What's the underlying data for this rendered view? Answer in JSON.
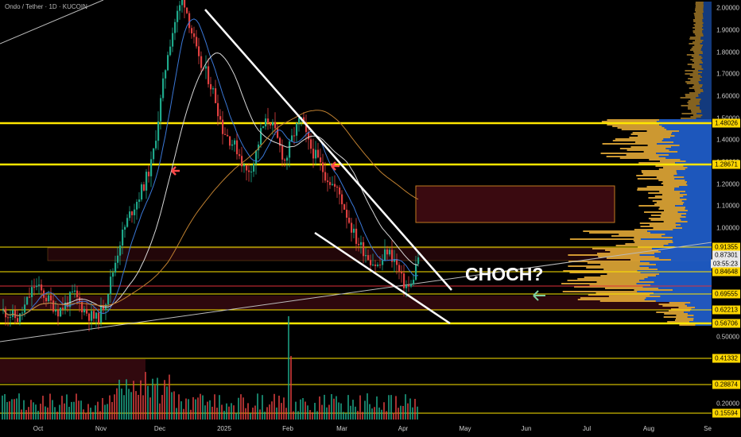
{
  "header": {
    "title": "Ondo / Tether · 1D · KUCOIN"
  },
  "annotation": {
    "text": "CHOCH?"
  },
  "colors": {
    "background": "#000000",
    "level_line": "#ffe600",
    "candle_up": "#1ea88a",
    "candle_down": "#e04040",
    "zone": "#3a0a10",
    "zone_border": "#c07a20",
    "volume_profile_up": "#f0b33a",
    "volume_profile_down": "#2060d0",
    "trendline": "#ffffff",
    "arrow_red": "#ff4a4a",
    "arrow_green": "#7fd0a0"
  },
  "chart_data": {
    "type": "candlestick",
    "y_axis_ticks": [
      "2.00000",
      "1.90000",
      "1.80000",
      "1.70000",
      "1.60000",
      "1.50000",
      "1.40000",
      "1.30000",
      "1.20000",
      "1.10000",
      "1.00000",
      "0.50000",
      "0.20000"
    ],
    "x_axis_ticks": [
      "Oct",
      "Nov",
      "Dec",
      "2025",
      "Feb",
      "Mar",
      "Apr",
      "May",
      "Jun",
      "Jul",
      "Aug",
      "Se"
    ],
    "price_labels": [
      {
        "value": "1.48026",
        "style": "yellow"
      },
      {
        "value": "1.28671",
        "style": "yellow"
      },
      {
        "value": "0.91355",
        "style": "yellow"
      },
      {
        "value": "0.87301",
        "style": "white"
      },
      {
        "value": "03:55:23",
        "style": "white"
      },
      {
        "value": "0.84648",
        "style": "yellow"
      },
      {
        "value": "0.69555",
        "style": "yellow"
      },
      {
        "value": "0.62213",
        "style": "yellow"
      },
      {
        "value": "0.56706",
        "style": "yellow"
      },
      {
        "value": "0.41332",
        "style": "yellow"
      },
      {
        "value": "0.28874",
        "style": "yellow"
      },
      {
        "value": "0.15594",
        "style": "yellow"
      }
    ],
    "approx_close_path": [
      0.62,
      0.6,
      0.58,
      0.66,
      0.74,
      0.7,
      0.66,
      0.62,
      0.65,
      0.7,
      0.64,
      0.6,
      0.58,
      0.66,
      0.8,
      0.95,
      1.05,
      1.12,
      1.2,
      1.3,
      1.55,
      1.8,
      1.95,
      2.05,
      1.9,
      1.75,
      1.7,
      1.6,
      1.45,
      1.4,
      1.35,
      1.25,
      1.3,
      1.45,
      1.5,
      1.4,
      1.3,
      1.42,
      1.5,
      1.38,
      1.32,
      1.25,
      1.2,
      1.15,
      1.05,
      0.95,
      0.9,
      0.85,
      0.82,
      0.9,
      0.85,
      0.75,
      0.72,
      0.87
    ],
    "trendlines": "descending channel from Dec high into Apr"
  }
}
